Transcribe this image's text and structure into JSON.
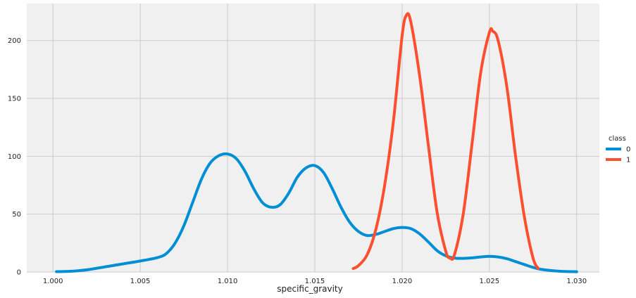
{
  "chart_data": {
    "type": "line",
    "title": "",
    "xlabel": "specific_gravity",
    "ylabel": "",
    "xlim": [
      0.9985,
      1.0313
    ],
    "ylim": [
      0,
      232
    ],
    "xticks": [
      1.0,
      1.005,
      1.01,
      1.015,
      1.02,
      1.025,
      1.03
    ],
    "xtick_labels": [
      "1.000",
      "1.005",
      "1.010",
      "1.015",
      "1.020",
      "1.025",
      "1.030"
    ],
    "yticks": [
      0,
      50,
      100,
      150,
      200
    ],
    "ytick_labels": [
      "0",
      "50",
      "100",
      "150",
      "200"
    ],
    "grid": true,
    "legend": {
      "title": "class",
      "placement": "right"
    },
    "series": [
      {
        "name": "0",
        "color": "#008fd5",
        "points": [
          [
            1.0002,
            0.3
          ],
          [
            1.001,
            0.6
          ],
          [
            1.002,
            2
          ],
          [
            1.003,
            4.5
          ],
          [
            1.004,
            7
          ],
          [
            1.005,
            9.5
          ],
          [
            1.006,
            12.5
          ],
          [
            1.0065,
            16
          ],
          [
            1.007,
            25
          ],
          [
            1.0075,
            40
          ],
          [
            1.008,
            60
          ],
          [
            1.0085,
            80
          ],
          [
            1.009,
            94
          ],
          [
            1.0095,
            100.5
          ],
          [
            1.01,
            102
          ],
          [
            1.0105,
            98
          ],
          [
            1.011,
            87
          ],
          [
            1.0115,
            72
          ],
          [
            1.012,
            60
          ],
          [
            1.0125,
            56
          ],
          [
            1.013,
            58
          ],
          [
            1.0135,
            68
          ],
          [
            1.014,
            82
          ],
          [
            1.0145,
            90
          ],
          [
            1.015,
            92
          ],
          [
            1.0155,
            86
          ],
          [
            1.016,
            72
          ],
          [
            1.0165,
            56
          ],
          [
            1.017,
            43
          ],
          [
            1.0175,
            35
          ],
          [
            1.018,
            31.5
          ],
          [
            1.0185,
            32.5
          ],
          [
            1.019,
            35
          ],
          [
            1.0195,
            37.5
          ],
          [
            1.02,
            38.5
          ],
          [
            1.0205,
            37.5
          ],
          [
            1.021,
            33
          ],
          [
            1.0215,
            26
          ],
          [
            1.022,
            18.5
          ],
          [
            1.0225,
            14
          ],
          [
            1.023,
            12
          ],
          [
            1.0235,
            11.8
          ],
          [
            1.024,
            12.2
          ],
          [
            1.0245,
            13
          ],
          [
            1.025,
            13.5
          ],
          [
            1.0255,
            13
          ],
          [
            1.026,
            11.5
          ],
          [
            1.0265,
            9
          ],
          [
            1.027,
            6.5
          ],
          [
            1.0275,
            4
          ],
          [
            1.028,
            2.2
          ],
          [
            1.029,
            0.7
          ],
          [
            1.03,
            0.2
          ]
        ]
      },
      {
        "name": "1",
        "color": "#fc4f30",
        "points": [
          [
            1.0172,
            3
          ],
          [
            1.0175,
            5.5
          ],
          [
            1.018,
            15
          ],
          [
            1.0185,
            37
          ],
          [
            1.019,
            75
          ],
          [
            1.0195,
            130
          ],
          [
            1.02,
            204
          ],
          [
            1.02025,
            222
          ],
          [
            1.0205,
            216
          ],
          [
            1.021,
            170
          ],
          [
            1.0215,
            110
          ],
          [
            1.022,
            52
          ],
          [
            1.0225,
            18
          ],
          [
            1.02275,
            12
          ],
          [
            1.023,
            15
          ],
          [
            1.0235,
            50
          ],
          [
            1.024,
            110
          ],
          [
            1.0245,
            172
          ],
          [
            1.025,
            207
          ],
          [
            1.0252,
            208
          ],
          [
            1.0255,
            200
          ],
          [
            1.026,
            160
          ],
          [
            1.0265,
            100
          ],
          [
            1.027,
            48
          ],
          [
            1.0275,
            12
          ],
          [
            1.0278,
            3
          ]
        ]
      }
    ]
  }
}
